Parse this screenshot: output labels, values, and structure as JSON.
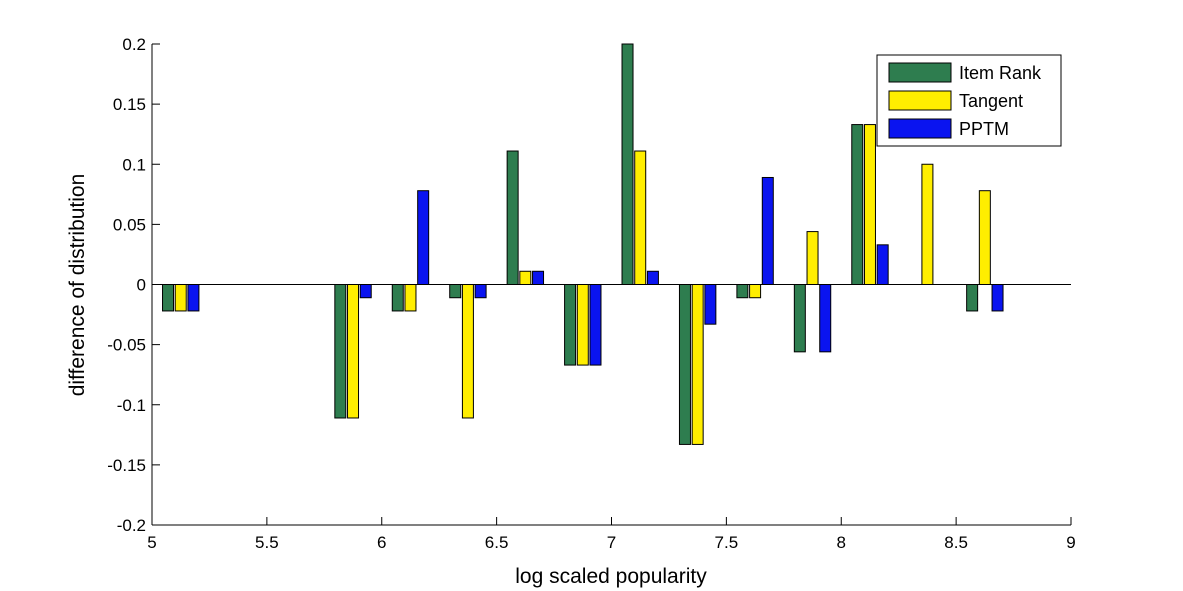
{
  "chart_data": {
    "type": "bar",
    "title": "",
    "xlabel": "log scaled popularity",
    "ylabel": "difference of distribution",
    "xlim": [
      5,
      9
    ],
    "ylim": [
      -0.2,
      0.2
    ],
    "xticks": [
      "5",
      "5.5",
      "6",
      "6.5",
      "7",
      "7.5",
      "8",
      "8.5",
      "9"
    ],
    "yticks": [
      "-0.2",
      "-0.15",
      "-0.1",
      "-0.05",
      "0",
      "0.05",
      "0.1",
      "0.15",
      "0.2"
    ],
    "grid": false,
    "legend_position": "top-right",
    "x": [
      5.125,
      5.375,
      5.625,
      5.875,
      6.125,
      6.375,
      6.625,
      6.875,
      7.125,
      7.375,
      7.625,
      7.875,
      8.125,
      8.375,
      8.625
    ],
    "series": [
      {
        "name": "Item Rank",
        "color": "#2e7d4f",
        "values": [
          -0.022,
          0,
          0,
          -0.111,
          -0.022,
          -0.011,
          0.111,
          -0.067,
          0.2,
          -0.133,
          -0.011,
          -0.056,
          0.133,
          0,
          -0.022
        ]
      },
      {
        "name": "Tangent",
        "color": "#ffee00",
        "values": [
          -0.022,
          0,
          0,
          -0.111,
          -0.022,
          -0.111,
          0.011,
          -0.067,
          0.111,
          -0.133,
          -0.011,
          0.044,
          0.133,
          0.1,
          0.078
        ]
      },
      {
        "name": "PPTM",
        "color": "#0a14f0",
        "values": [
          -0.022,
          0,
          0,
          -0.011,
          0.078,
          -0.011,
          0.011,
          -0.067,
          0.011,
          -0.033,
          0.089,
          -0.056,
          0.033,
          0,
          -0.022
        ]
      }
    ]
  }
}
